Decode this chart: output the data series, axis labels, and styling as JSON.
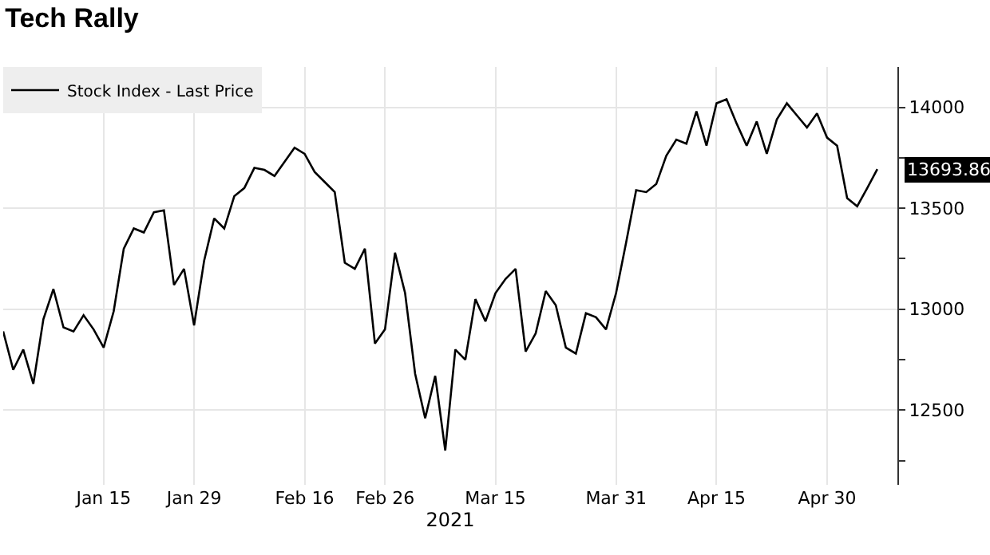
{
  "chart_data": {
    "type": "line",
    "title": "Tech Rally",
    "xlabel": "2021",
    "categories": [
      null,
      null,
      null,
      null,
      null,
      null,
      null,
      null,
      null,
      null,
      "Jan 15",
      null,
      null,
      null,
      null,
      null,
      null,
      null,
      null,
      "Jan 29",
      null,
      null,
      null,
      null,
      null,
      null,
      null,
      null,
      null,
      null,
      "Feb 16",
      null,
      null,
      null,
      null,
      null,
      null,
      null,
      "Feb 26",
      null,
      null,
      null,
      null,
      null,
      null,
      null,
      null,
      null,
      null,
      "Mar 15",
      null,
      null,
      null,
      null,
      null,
      null,
      null,
      null,
      null,
      null,
      null,
      "Mar 31",
      null,
      null,
      null,
      null,
      null,
      null,
      null,
      null,
      null,
      "Apr 15",
      null,
      null,
      null,
      null,
      null,
      null,
      null,
      null,
      null,
      null,
      "Apr 30",
      null,
      null,
      null,
      null,
      null
    ],
    "series": [
      {
        "name": "Stock Index - Last Price",
        "color": "#000000",
        "values": [
          12890,
          12700,
          12800,
          12630,
          12950,
          13100,
          12910,
          12890,
          12970,
          12900,
          12810,
          12990,
          13300,
          13400,
          13380,
          13480,
          13490,
          13120,
          13200,
          12920,
          13240,
          13450,
          13400,
          13560,
          13600,
          13700,
          13690,
          13660,
          13730,
          13800,
          13770,
          13680,
          13630,
          13580,
          13230,
          13200,
          13300,
          12830,
          12900,
          13280,
          13080,
          12680,
          12460,
          12670,
          12300,
          12800,
          12750,
          13050,
          12940,
          13080,
          13150,
          13200,
          12790,
          12880,
          13090,
          13020,
          12810,
          12780,
          12980,
          12960,
          12900,
          13080,
          13330,
          13590,
          13580,
          13620,
          13760,
          13840,
          13820,
          13980,
          13810,
          14020,
          14040,
          13920,
          13810,
          13930,
          13770,
          13940,
          14020,
          13960,
          13900,
          13970,
          13850,
          13810,
          13550,
          13510,
          13600,
          13693.86
        ],
        "value_labels": [
          null,
          null,
          null,
          null,
          null,
          null,
          null,
          null,
          null,
          null,
          null,
          null,
          null,
          null,
          null,
          null,
          null,
          null,
          null,
          null,
          null,
          null,
          null,
          null,
          null,
          null,
          null,
          null,
          null,
          null,
          null,
          null,
          null,
          null,
          null,
          null,
          null,
          null,
          null,
          null,
          null,
          null,
          null,
          null,
          null,
          null,
          null,
          null,
          null,
          null,
          null,
          null,
          null,
          null,
          null,
          null,
          null,
          null,
          null,
          null,
          null,
          null,
          null,
          null,
          null,
          null,
          null,
          null,
          null,
          null,
          null,
          null,
          null,
          null,
          null,
          null,
          null,
          null,
          null,
          null,
          null,
          null,
          null,
          null,
          null,
          null,
          null,
          "13693.86"
        ]
      }
    ],
    "ylim": [
      12130,
      14200
    ],
    "yticks": [
      {
        "value": 12250,
        "label": null
      },
      12500,
      {
        "value": 12750,
        "label": null
      },
      13000,
      {
        "value": 13250,
        "label": null
      },
      13500,
      {
        "value": 13750,
        "label": null
      },
      14000
    ],
    "grid": true,
    "legend": "top left",
    "marker": "none",
    "line_style": "solid"
  }
}
